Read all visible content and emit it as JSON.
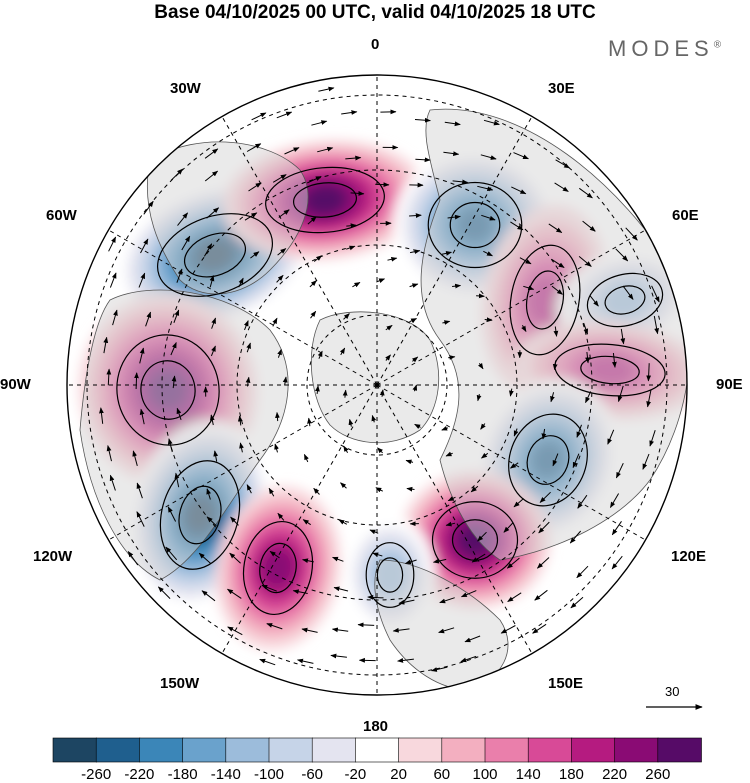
{
  "title": "Base 04/10/2025 00 UTC, valid 04/10/2025 18 UTC",
  "brand": {
    "name": "MODES",
    "mark": "®"
  },
  "longitude_labels": {
    "lon_0": "0",
    "lon_30e": "30E",
    "lon_60e": "60E",
    "lon_90e": "90E",
    "lon_120e": "120E",
    "lon_150e": "150E",
    "lon_180": "180",
    "lon_150w": "150W",
    "lon_120w": "120W",
    "lon_90w": "90W",
    "lon_60w": "60W",
    "lon_30w": "30W"
  },
  "vector_scale": {
    "label": "30"
  },
  "colorbar": {
    "ticks": [
      "-260",
      "-220",
      "-180",
      "-140",
      "-100",
      "-60",
      "-20",
      "20",
      "60",
      "100",
      "140",
      "180",
      "220",
      "260"
    ],
    "colors": [
      "#1d4562",
      "#1f5f8e",
      "#3b86b8",
      "#6aa2cc",
      "#9cbcdb",
      "#c6d4e8",
      "#e4e4f0",
      "#ffffff",
      "#f8d8dd",
      "#f3afc0",
      "#ea7fab",
      "#d84a97",
      "#b51b80",
      "#8a0b74",
      "#560b67"
    ]
  },
  "anomalies": [
    {
      "label": "low-north-atlantic",
      "value": -270
    },
    {
      "label": "high-greenland",
      "value": 240
    },
    {
      "label": "low-scandinavia",
      "value": -240
    },
    {
      "label": "high-western-russia",
      "value": 150
    },
    {
      "label": "low-central-asia",
      "value": -110
    },
    {
      "label": "high-siberia",
      "value": 160
    },
    {
      "label": "low-east-siberia",
      "value": -220
    },
    {
      "label": "high-kamchatka",
      "value": 250
    },
    {
      "label": "high-canada",
      "value": 250
    },
    {
      "label": "low-gulf-of-alaska",
      "value": -260
    },
    {
      "label": "high-north-pacific",
      "value": 210
    },
    {
      "label": "low-central-pacific",
      "value": -120
    }
  ]
}
